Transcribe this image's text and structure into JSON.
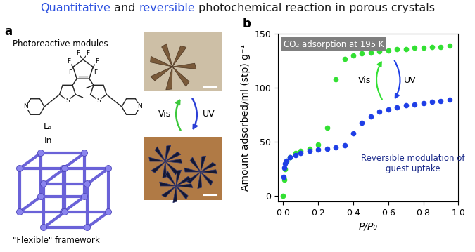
{
  "title_parts": [
    {
      "text": "Quantitative",
      "color": "#2e52e0"
    },
    {
      "text": "and",
      "color": "#1a1a1a"
    },
    {
      "text": "reversible",
      "color": "#2e52e0"
    },
    {
      "text": "photochemical reaction in porous crystals",
      "color": "#1a1a1a"
    }
  ],
  "panel_labels": [
    "a",
    "b"
  ],
  "panel_a": {
    "heading": "Photoreactive modules",
    "ligand": "Lₒ",
    "connector": "In",
    "framework": "\"Flexible\" framework",
    "atoms": {
      "fluorine": [
        "F",
        "F",
        "F",
        "F",
        "F",
        "F"
      ],
      "sulfur": [
        "S",
        "S"
      ],
      "nitrogen": [
        "N",
        "N"
      ]
    },
    "switch": {
      "up": "Vis",
      "down": "UV",
      "up_color": "#3cc83c",
      "down_color": "#2b3fd6"
    }
  },
  "chart_data": {
    "type": "scatter",
    "title": "CO₂ adsorption at 195 K",
    "x_label": "P/P₀",
    "y_label": "Amount adsorbed/ml (stp) g⁻¹",
    "annotations": [
      "Vis",
      "UV",
      "Reversible modulation of\nguest uptake"
    ],
    "xlim": [
      -0.03,
      1.0
    ],
    "xticks": [
      {
        "value": 0,
        "label": "0.0"
      },
      0.2,
      0.4,
      0.6,
      0.8,
      1.0
    ],
    "ylim": [
      -5,
      150
    ],
    "yticks": [
      0,
      50,
      100,
      150
    ],
    "grid": false,
    "marker": "o",
    "line_style": "none",
    "series": [
      {
        "color": "#33e033",
        "x": [
          0.0,
          0.005,
          0.01,
          0.02,
          0.04,
          0.07,
          0.1,
          0.15,
          0.2,
          0.25,
          0.3,
          0.35,
          0.4,
          0.45,
          0.5,
          0.55,
          0.6,
          0.65,
          0.7,
          0.75,
          0.8,
          0.85,
          0.9,
          0.95
        ],
        "values": [
          0,
          15,
          25,
          32,
          36,
          40,
          42,
          44,
          48,
          63,
          108,
          127,
          130,
          132,
          133,
          134,
          135,
          136,
          136,
          137,
          137,
          138,
          138,
          139
        ]
      },
      {
        "color": "#1f3fe6",
        "x": [
          0.002,
          0.005,
          0.01,
          0.02,
          0.04,
          0.07,
          0.1,
          0.15,
          0.2,
          0.25,
          0.3,
          0.35,
          0.4,
          0.45,
          0.5,
          0.55,
          0.6,
          0.65,
          0.7,
          0.75,
          0.8,
          0.85,
          0.9,
          0.95
        ],
        "values": [
          18,
          26,
          30,
          33,
          36,
          38,
          40,
          42,
          43,
          44,
          45,
          47,
          58,
          68,
          74,
          78,
          80,
          82,
          84,
          85,
          86,
          87,
          88,
          89
        ]
      }
    ]
  }
}
